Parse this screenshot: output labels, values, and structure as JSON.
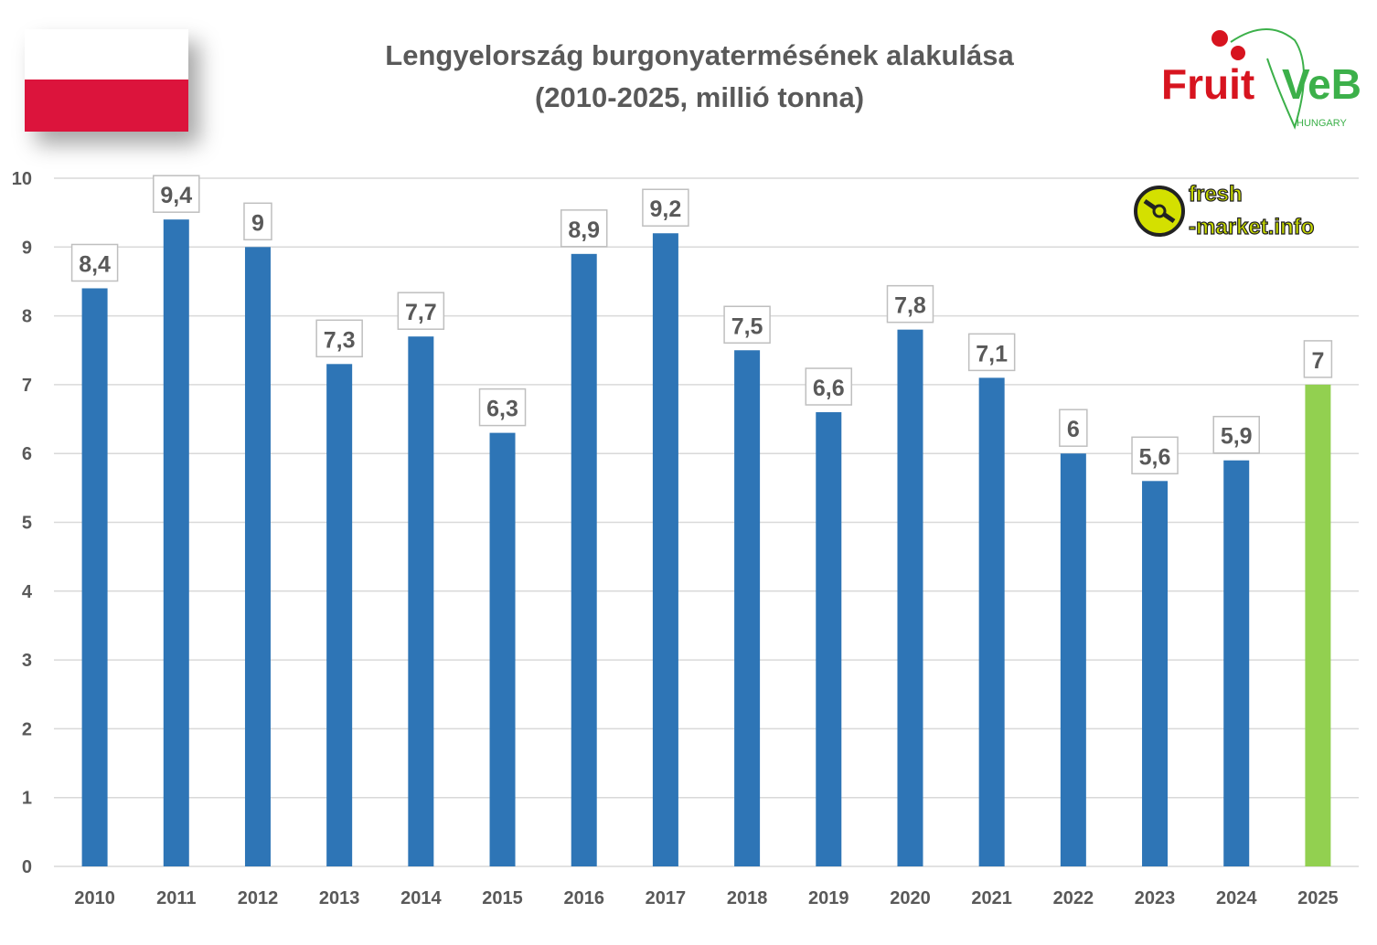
{
  "title_line1": "Lengyelország burgonyatermésének alakulása",
  "title_line2": "(2010-2025, millió tonna)",
  "logos": {
    "fruitveb": {
      "text_red": "Fruit",
      "text_green": "VeB",
      "subtitle": "HUNGARY"
    },
    "freshmarket": {
      "text_top": "fresh",
      "text_bottom": "-market.info"
    }
  },
  "flag": "Poland",
  "colors": {
    "bar": "#2e75b6",
    "highlight": "#92d050",
    "grid": "#d9d9d9",
    "text": "#595959"
  },
  "chart_data": {
    "type": "bar",
    "title": "Lengyelország burgonyatermésének alakulása (2010-2025, millió tonna)",
    "categories": [
      "2010",
      "2011",
      "2012",
      "2013",
      "2014",
      "2015",
      "2016",
      "2017",
      "2018",
      "2019",
      "2020",
      "2021",
      "2022",
      "2023",
      "2024",
      "2025"
    ],
    "values": [
      8.4,
      9.4,
      9,
      7.3,
      7.7,
      6.3,
      8.9,
      9.2,
      7.5,
      6.6,
      7.8,
      7.1,
      6,
      5.6,
      5.9,
      7
    ],
    "data_labels": [
      "8,4",
      "9,4",
      "9",
      "7,3",
      "7,7",
      "6,3",
      "8,9",
      "9,2",
      "7,5",
      "6,6",
      "7,8",
      "7,1",
      "6",
      "5,6",
      "5,9",
      "7"
    ],
    "highlighted_category": "2025",
    "ylim": [
      0,
      10
    ],
    "yticks": [
      0,
      1,
      2,
      3,
      4,
      5,
      6,
      7,
      8,
      9,
      10
    ],
    "grid": true,
    "xlabel": "",
    "ylabel": ""
  }
}
